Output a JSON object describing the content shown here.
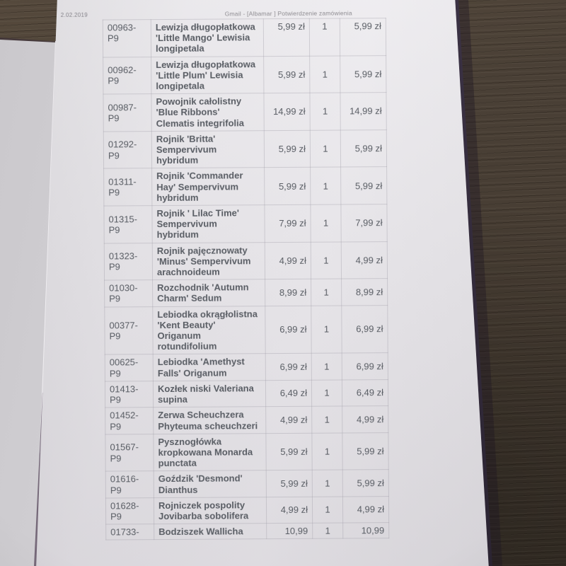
{
  "photo": {
    "date_label": "2.02.2019",
    "print_header": "Gmail - [Albamar ] Potwierdzenie zamówienia"
  },
  "palette": {
    "wood_brown": "#473d33",
    "paper_light": "#e9e7eb",
    "under_paper": "#d4d2d6",
    "name_blue": "#3c61a7",
    "name_navy": "#31466e",
    "name_navy_dark": "#252e49",
    "value_gray": "#595d64",
    "header_gray": "#8d8b90",
    "grid_line": "#cfccd3",
    "edge_shadow": "#342c3d"
  },
  "order_table": {
    "rows": [
      {
        "code": "00963-P9",
        "name": "Lewizja długopłatkowa 'Little Mango' Lewisia longipetala",
        "price": "5,99 zł",
        "qty": "1",
        "total": "5,99 zł",
        "name_tone": "blue"
      },
      {
        "code": "00962-P9",
        "name": "Lewizja długopłatkowa 'Little Plum' Lewisia longipetala",
        "price": "5,99 zł",
        "qty": "1",
        "total": "5,99 zł",
        "name_tone": "blue"
      },
      {
        "code": "00987-P9",
        "name": "Powojnik całolistny 'Blue Ribbons' Clematis integrifolia",
        "price": "14,99 zł",
        "qty": "1",
        "total": "14,99 zł",
        "name_tone": "navy"
      },
      {
        "code": "01292-P9",
        "name": "Rojnik 'Britta' Sempervivum hybridum",
        "price": "5,99 zł",
        "qty": "1",
        "total": "5,99 zł",
        "name_tone": "blue"
      },
      {
        "code": "01311-P9",
        "name": "Rojnik 'Commander Hay' Sempervivum hybridum",
        "price": "5,99 zł",
        "qty": "1",
        "total": "5,99 zł",
        "name_tone": "blue"
      },
      {
        "code": "01315-P9",
        "name": "Rojnik ' Lilac Time' Sempervivum hybridum",
        "price": "7,99 zł",
        "qty": "1",
        "total": "7,99 zł",
        "name_tone": "blue"
      },
      {
        "code": "01323-P9",
        "name": "Rojnik pajęcznowaty 'Minus' Sempervivum arachnoideum",
        "price": "4,99 zł",
        "qty": "1",
        "total": "4,99 zł",
        "name_tone": "blue"
      },
      {
        "code": "01030-P9",
        "name": "Rozchodnik 'Autumn Charm' Sedum",
        "price": "8,99 zł",
        "qty": "1",
        "total": "8,99 zł",
        "name_tone": "blue"
      },
      {
        "code": "00377-P9",
        "name": "Lebiodka okrągłolistna 'Kent Beauty' Origanum rotundifolium",
        "price": "6,99 zł",
        "qty": "1",
        "total": "6,99 zł",
        "name_tone": "blue"
      },
      {
        "code": "00625-P9",
        "name": "Lebiodka 'Amethyst Falls' Origanum",
        "price": "6,99 zł",
        "qty": "1",
        "total": "6,99 zł",
        "name_tone": "blue"
      },
      {
        "code": "01413-P9",
        "name": "Kozłek niski Valeriana supina",
        "price": "6,49 zł",
        "qty": "1",
        "total": "6,49 zł",
        "name_tone": "blue"
      },
      {
        "code": "01452-P9",
        "name": "Zerwa Scheuchzera Phyteuma scheuchzeri",
        "price": "4,99 zł",
        "qty": "1",
        "total": "4,99 zł",
        "name_tone": "blue"
      },
      {
        "code": "01567-P9",
        "name": "Pysznogłówka kropkowana Monarda punctata",
        "price": "5,99 zł",
        "qty": "1",
        "total": "5,99 zł",
        "name_tone": "blue"
      },
      {
        "code": "01616-P9",
        "name": "Goździk 'Desmond' Dianthus",
        "price": "5,99 zł",
        "qty": "1",
        "total": "5,99 zł",
        "name_tone": "blue"
      },
      {
        "code": "01628-P9",
        "name": "Rojniczek pospolity Jovibarba sobolifera",
        "price": "4,99 zł",
        "qty": "1",
        "total": "4,99 zł",
        "name_tone": "blue"
      },
      {
        "code": "01733-",
        "name": "Bodziszek Wallicha",
        "price": "10,99",
        "qty": "1",
        "total": "10,99",
        "name_tone": "navy-dark"
      }
    ]
  }
}
